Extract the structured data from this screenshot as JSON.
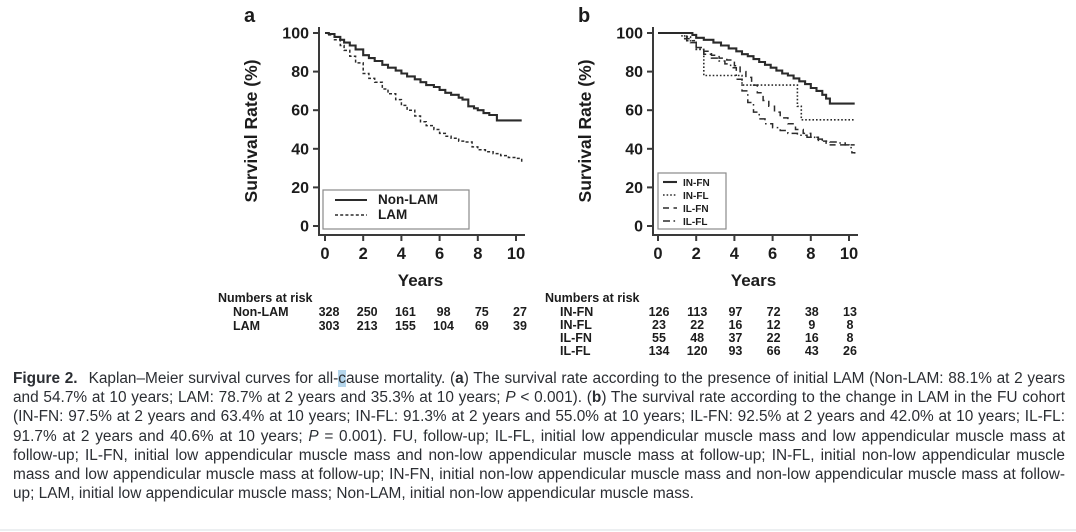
{
  "colors": {
    "curve": "#2b2b2b",
    "axis": "#3a3a3a",
    "legend_border": "#8a8a8a",
    "caption_text": "#2b2e33",
    "selection_highlight": "#b5d6ec",
    "bottom_rule": "#eceff1"
  },
  "chart_data": [
    {
      "type": "line",
      "subtype": "kaplan-meier-step",
      "panel_label": "a",
      "xlabel": "Years",
      "ylabel": "Survival Rate (%)",
      "xlim": [
        0,
        10.5
      ],
      "ylim": [
        0,
        100
      ],
      "xticks": [
        0,
        2,
        4,
        6,
        8,
        10
      ],
      "yticks": [
        0,
        20,
        40,
        60,
        80,
        100
      ],
      "grid": false,
      "legend_position": "lower-left",
      "series": [
        {
          "name": "Non-LAM",
          "style": "solid",
          "points": [
            [
              0,
              100
            ],
            [
              0.2,
              99.5
            ],
            [
              0.5,
              98
            ],
            [
              0.8,
              96.5
            ],
            [
              1,
              95
            ],
            [
              1.3,
              93.5
            ],
            [
              1.6,
              91.5
            ],
            [
              2,
              88.5
            ],
            [
              2.3,
              87
            ],
            [
              2.6,
              85.5
            ],
            [
              3,
              83.5
            ],
            [
              3.3,
              82
            ],
            [
              3.7,
              80.5
            ],
            [
              4,
              79
            ],
            [
              4.3,
              77.5
            ],
            [
              4.7,
              76
            ],
            [
              5,
              74.5
            ],
            [
              5.3,
              73
            ],
            [
              5.7,
              72
            ],
            [
              6,
              70.5
            ],
            [
              6.3,
              69
            ],
            [
              6.6,
              68
            ],
            [
              7,
              66.5
            ],
            [
              7.2,
              65.5
            ],
            [
              7.5,
              62
            ],
            [
              7.8,
              61
            ],
            [
              8,
              60
            ],
            [
              8.3,
              58.5
            ],
            [
              8.6,
              57.5
            ],
            [
              9,
              54.7
            ],
            [
              10.3,
              54.7
            ]
          ]
        },
        {
          "name": "LAM",
          "style": "dash-fine",
          "points": [
            [
              0,
              100
            ],
            [
              0.2,
              99
            ],
            [
              0.5,
              96.5
            ],
            [
              0.8,
              93.5
            ],
            [
              1,
              91
            ],
            [
              1.3,
              88
            ],
            [
              1.6,
              84.5
            ],
            [
              2,
              79
            ],
            [
              2.3,
              76.5
            ],
            [
              2.6,
              74.5
            ],
            [
              3,
              71
            ],
            [
              3.3,
              68.5
            ],
            [
              3.7,
              65.5
            ],
            [
              4,
              62.5
            ],
            [
              4.3,
              60
            ],
            [
              4.7,
              57
            ],
            [
              5,
              54
            ],
            [
              5.3,
              52
            ],
            [
              5.7,
              50
            ],
            [
              6,
              48
            ],
            [
              6.3,
              46.5
            ],
            [
              6.6,
              45.5
            ],
            [
              7,
              44
            ],
            [
              7.4,
              43.5
            ],
            [
              7.7,
              41
            ],
            [
              8,
              39.5
            ],
            [
              8.4,
              38.5
            ],
            [
              8.8,
              37.5
            ],
            [
              9.2,
              36.5
            ],
            [
              9.6,
              35.5
            ],
            [
              10,
              35
            ],
            [
              10.3,
              33
            ]
          ]
        }
      ],
      "annotations": {
        "survival_2y": {
          "Non-LAM": "88.1%",
          "LAM": "78.7%"
        },
        "survival_10y": {
          "Non-LAM": "54.7%",
          "LAM": "35.3%"
        },
        "p_value": "P < 0.001"
      },
      "numbers_at_risk": {
        "title": "Numbers at risk",
        "rows": [
          {
            "label": "Non-LAM",
            "values": [
              "328",
              "250",
              "161",
              "98",
              "75",
              "27"
            ]
          },
          {
            "label": "LAM",
            "values": [
              "303",
              "213",
              "155",
              "104",
              "69",
              "39"
            ]
          }
        ]
      }
    },
    {
      "type": "line",
      "subtype": "kaplan-meier-step",
      "panel_label": "b",
      "xlabel": "Years",
      "ylabel": "Survival Rate (%)",
      "xlim": [
        0,
        10.5
      ],
      "ylim": [
        0,
        100
      ],
      "xticks": [
        0,
        2,
        4,
        6,
        8,
        10
      ],
      "yticks": [
        0,
        20,
        40,
        60,
        80,
        100
      ],
      "grid": false,
      "legend_position": "lower-left",
      "series": [
        {
          "name": "IN-FN",
          "style": "solid",
          "points": [
            [
              0,
              100
            ],
            [
              1.6,
              100
            ],
            [
              1.8,
              99
            ],
            [
              2,
              97.5
            ],
            [
              2.4,
              96.5
            ],
            [
              2.9,
              95
            ],
            [
              3.3,
              93.5
            ],
            [
              3.7,
              92
            ],
            [
              4.1,
              90.5
            ],
            [
              4.4,
              89
            ],
            [
              4.7,
              88
            ],
            [
              5,
              86.5
            ],
            [
              5.3,
              85
            ],
            [
              5.6,
              83.5
            ],
            [
              5.9,
              82
            ],
            [
              6.2,
              80.5
            ],
            [
              6.5,
              79
            ],
            [
              6.8,
              78
            ],
            [
              7.1,
              76.5
            ],
            [
              7.4,
              75
            ],
            [
              7.7,
              73.5
            ],
            [
              8,
              71.5
            ],
            [
              8.3,
              70
            ],
            [
              8.6,
              68
            ],
            [
              8.8,
              66
            ],
            [
              9,
              63.4
            ],
            [
              10.3,
              63.4
            ]
          ]
        },
        {
          "name": "IN-FL",
          "style": "dotted",
          "points": [
            [
              0,
              100
            ],
            [
              1.2,
              100
            ],
            [
              1.4,
              98
            ],
            [
              1.7,
              96
            ],
            [
              2,
              91.5
            ],
            [
              2.4,
              78
            ],
            [
              4.2,
              78
            ],
            [
              4.4,
              73
            ],
            [
              7.1,
              73
            ],
            [
              7.3,
              62
            ],
            [
              7.5,
              55
            ],
            [
              10.3,
              55
            ]
          ]
        },
        {
          "name": "IL-FN",
          "style": "dashed",
          "points": [
            [
              0,
              100
            ],
            [
              1.1,
              100
            ],
            [
              1.4,
              97
            ],
            [
              1.7,
              95
            ],
            [
              2,
              92.5
            ],
            [
              2.4,
              90.5
            ],
            [
              2.8,
              88.5
            ],
            [
              3.2,
              87
            ],
            [
              3.6,
              86
            ],
            [
              4,
              83
            ],
            [
              4.3,
              80
            ],
            [
              4.6,
              77
            ],
            [
              4.9,
              73
            ],
            [
              5.2,
              69
            ],
            [
              5.5,
              65
            ],
            [
              5.8,
              62
            ],
            [
              6.1,
              59
            ],
            [
              6.4,
              56
            ],
            [
              6.8,
              53
            ],
            [
              7.2,
              50
            ],
            [
              7.6,
              48
            ],
            [
              8,
              46
            ],
            [
              8.4,
              44
            ],
            [
              8.8,
              42
            ],
            [
              10.3,
              42
            ]
          ]
        },
        {
          "name": "IL-FL",
          "style": "dash-dot",
          "points": [
            [
              0,
              100
            ],
            [
              0.9,
              100
            ],
            [
              1.2,
              98.5
            ],
            [
              1.5,
              96
            ],
            [
              2,
              91.7
            ],
            [
              2.4,
              89
            ],
            [
              2.8,
              87
            ],
            [
              3.2,
              85.5
            ],
            [
              3.5,
              84
            ],
            [
              3.8,
              82
            ],
            [
              4.1,
              76
            ],
            [
              4.4,
              70
            ],
            [
              4.7,
              64
            ],
            [
              5,
              59
            ],
            [
              5.3,
              55.5
            ],
            [
              5.6,
              53
            ],
            [
              6,
              51
            ],
            [
              6.4,
              49.5
            ],
            [
              6.8,
              48
            ],
            [
              7.3,
              47
            ],
            [
              7.8,
              46
            ],
            [
              8.2,
              45
            ],
            [
              8.6,
              44
            ],
            [
              9,
              43.5
            ],
            [
              9.4,
              43
            ],
            [
              9.8,
              42
            ],
            [
              10,
              40.6
            ],
            [
              10.15,
              38
            ],
            [
              10.3,
              37.5
            ]
          ]
        }
      ],
      "annotations": {
        "survival_2y": {
          "IN-FN": "97.5%",
          "IN-FL": "91.3%",
          "IL-FN": "92.5%",
          "IL-FL": "91.7%"
        },
        "survival_10y": {
          "IN-FN": "63.4%",
          "IN-FL": "55.0%",
          "IL-FN": "42.0%",
          "IL-FL": "40.6%"
        },
        "p_value": "P = 0.001"
      },
      "numbers_at_risk": {
        "title": "Numbers at risk",
        "rows": [
          {
            "label": "IN-FN",
            "values": [
              "126",
              "113",
              "97",
              "72",
              "38",
              "13"
            ]
          },
          {
            "label": "IN-FL",
            "values": [
              "23",
              "22",
              "16",
              "12",
              "9",
              "8"
            ]
          },
          {
            "label": "IL-FN",
            "values": [
              "55",
              "48",
              "37",
              "22",
              "16",
              "8"
            ]
          },
          {
            "label": "IL-FL",
            "values": [
              "134",
              "120",
              "93",
              "66",
              "43",
              "26"
            ]
          }
        ]
      }
    }
  ],
  "figure": {
    "caption_segments": [
      {
        "t": "Figure 2.",
        "b": true,
        "gap": true
      },
      {
        "t": "Kaplan–Meier survival curves for all-"
      },
      {
        "t": "c",
        "hl": true
      },
      {
        "t": "ause mortality. ("
      },
      {
        "t": "a",
        "b": true
      },
      {
        "t": ") The survival rate according to the presence of initial LAM (Non-LAM: 88.1% at 2 years and 54.7% at 10 years; LAM: 78.7% at 2 years and 35.3% at 10 years; "
      },
      {
        "t": "P",
        "i": true
      },
      {
        "t": " < 0.001). ("
      },
      {
        "t": "b",
        "b": true
      },
      {
        "t": ") The survival rate according to the change in LAM in the FU cohort (IN-FN: 97.5% at 2 years and 63.4% at 10 years; IN-FL: 91.3% at 2 years and 55.0% at 10 years; IL-FN: 92.5% at 2 years and 42.0% at 10 years; IL-FL: 91.7% at 2 years and 40.6% at 10 years; "
      },
      {
        "t": "P",
        "i": true
      },
      {
        "t": " = 0.001). FU, follow-up; IL-FL, initial low appendicular muscle mass and low appendicular muscle mass at follow-up; IL-FN, initial low appendicular muscle mass and non-low appendicular muscle mass at follow-up; IN-FL, initial non-low appendicular muscle mass and low appendicular muscle mass at follow-up; IN-FN, initial non-low appendicular muscle mass and non-low appendicular muscle mass at follow-up; LAM, initial low appendicular muscle mass; Non-LAM, initial non-low appendicular muscle mass."
      }
    ]
  }
}
